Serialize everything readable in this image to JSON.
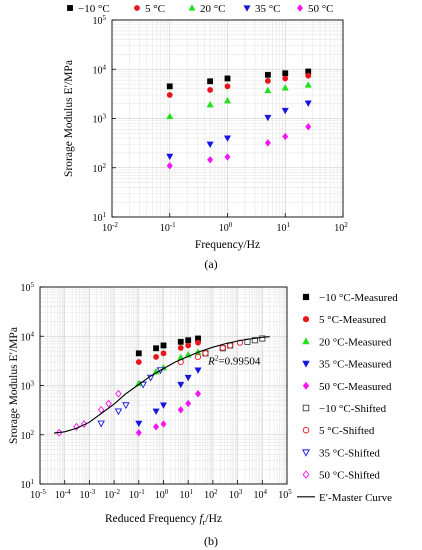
{
  "figure": {
    "panel_a_label": "(a)",
    "panel_b_label": "(b)"
  },
  "chart_data": [
    {
      "type": "scatter",
      "panel": "a",
      "xlabel": "Frequency/Hz",
      "ylabel": "Srorage Modulus E′/MPa",
      "x_scale": "log",
      "y_scale": "log",
      "xlim": [
        0.01,
        100
      ],
      "ylim": [
        10,
        100000
      ],
      "x_ticks": [
        0.01,
        0.1,
        1,
        10,
        100
      ],
      "x_tick_labels": [
        [
          "10",
          "-2"
        ],
        [
          "10",
          "-1"
        ],
        [
          "10",
          "0"
        ],
        [
          "10",
          "1"
        ],
        [
          "10",
          "2"
        ]
      ],
      "y_ticks": [
        10,
        100,
        1000,
        10000,
        100000
      ],
      "y_tick_labels": [
        [
          "10",
          "1"
        ],
        [
          "10",
          "2"
        ],
        [
          "10",
          "3"
        ],
        [
          "10",
          "4"
        ],
        [
          "10",
          "5"
        ]
      ],
      "grid": true,
      "legend_position": "top, horizontal",
      "series": [
        {
          "name": "−10 °C",
          "marker": "square",
          "color": "#000000",
          "x": [
            0.1,
            0.5,
            1,
            5,
            10,
            25
          ],
          "y": [
            4500,
            5700,
            6500,
            7700,
            8300,
            9000
          ]
        },
        {
          "name": "5 °C",
          "marker": "circle",
          "color": "#e8151b",
          "x": [
            0.1,
            0.5,
            1,
            5,
            10,
            25
          ],
          "y": [
            3000,
            3800,
            4500,
            5800,
            6500,
            7400
          ]
        },
        {
          "name": "20 °C",
          "marker": "triangle-up",
          "color": "#22e01e",
          "x": [
            0.1,
            0.5,
            1,
            5,
            10,
            25
          ],
          "y": [
            1100,
            1900,
            2300,
            3700,
            4200,
            4800
          ]
        },
        {
          "name": "35 °C",
          "marker": "triangle-down",
          "color": "#1515e0",
          "x": [
            0.1,
            0.5,
            1,
            5,
            10,
            25
          ],
          "y": [
            170,
            300,
            400,
            1050,
            1450,
            2050
          ]
        },
        {
          "name": "50 °C",
          "marker": "diamond",
          "color": "#f214f2",
          "x": [
            0.1,
            0.5,
            1,
            5,
            10,
            25
          ],
          "y": [
            110,
            145,
            165,
            320,
            430,
            680
          ]
        }
      ]
    },
    {
      "type": "scatter",
      "panel": "b",
      "xlabel_main": "Reduced Frequency ",
      "xlabel_var": "f",
      "xlabel_sub": "r",
      "xlabel_unit": "/Hz",
      "ylabel": "Srorage Modulus E′/MPa",
      "x_scale": "log",
      "y_scale": "log",
      "xlim": [
        1e-05,
        100000
      ],
      "ylim": [
        10,
        100000
      ],
      "x_ticks": [
        1e-05,
        0.0001,
        0.001,
        0.01,
        0.1,
        1,
        10,
        100,
        1000,
        10000,
        100000
      ],
      "x_tick_labels": [
        [
          "10",
          "-5"
        ],
        [
          "10",
          "-4"
        ],
        [
          "10",
          "-3"
        ],
        [
          "10",
          "-2"
        ],
        [
          "10",
          "-1"
        ],
        [
          "10",
          "0"
        ],
        [
          "10",
          "1"
        ],
        [
          "10",
          "2"
        ],
        [
          "10",
          "3"
        ],
        [
          "10",
          "4"
        ],
        [
          "10",
          "5"
        ]
      ],
      "y_ticks": [
        10,
        100,
        1000,
        10000,
        100000
      ],
      "y_tick_labels": [
        [
          "10",
          "1"
        ],
        [
          "10",
          "2"
        ],
        [
          "10",
          "3"
        ],
        [
          "10",
          "4"
        ],
        [
          "10",
          "5"
        ]
      ],
      "grid": true,
      "legend_position": "right",
      "annotation": {
        "var": "R",
        "sup": "2",
        "text": "=0.99504",
        "at_x": 500,
        "at_y": 2700
      },
      "series": [
        {
          "name": "−10 °C-Measured",
          "marker": "square",
          "filled": true,
          "color": "#000000",
          "x": [
            0.1,
            0.5,
            1,
            5,
            10,
            25
          ],
          "y": [
            4500,
            5700,
            6500,
            7700,
            8300,
            9000
          ]
        },
        {
          "name": "5 °C-Measured",
          "marker": "circle",
          "filled": true,
          "color": "#e8151b",
          "x": [
            0.1,
            0.5,
            1,
            5,
            10,
            25
          ],
          "y": [
            3000,
            3800,
            4500,
            5800,
            6500,
            7400
          ]
        },
        {
          "name": "20 °C-Measured",
          "marker": "triangle-up",
          "filled": true,
          "color": "#22e01e",
          "x": [
            0.1,
            0.5,
            1,
            5,
            10,
            25
          ],
          "y": [
            1100,
            1900,
            2300,
            3700,
            4200,
            4800
          ]
        },
        {
          "name": "35 °C-Measured",
          "marker": "triangle-down",
          "filled": true,
          "color": "#1515e0",
          "x": [
            0.1,
            0.5,
            1,
            5,
            10,
            25
          ],
          "y": [
            170,
            300,
            400,
            1050,
            1450,
            2050
          ]
        },
        {
          "name": "50 °C-Measured",
          "marker": "diamond",
          "filled": true,
          "color": "#f214f2",
          "x": [
            0.1,
            0.5,
            1,
            5,
            10,
            25
          ],
          "y": [
            110,
            145,
            165,
            320,
            430,
            680
          ]
        },
        {
          "name": "−10 °C-Shifted",
          "marker": "square",
          "filled": false,
          "color": "#404040",
          "x": [
            50,
            250,
            500,
            2500,
            5000,
            10000
          ],
          "y": [
            4500,
            5700,
            6500,
            7700,
            8300,
            9000
          ]
        },
        {
          "name": "5 °C-Shifted",
          "marker": "circle",
          "filled": false,
          "color": "#e8151b",
          "x": [
            5,
            25,
            50,
            250,
            500,
            1250
          ],
          "y": [
            3000,
            3800,
            4500,
            5800,
            6500,
            7400
          ]
        },
        {
          "name": "35 °C-Shifted",
          "marker": "triangle-down",
          "filled": false,
          "color": "#1515e0",
          "x": [
            0.003,
            0.015,
            0.03,
            0.15,
            0.3,
            0.75
          ],
          "y": [
            170,
            300,
            400,
            1050,
            1450,
            2050
          ]
        },
        {
          "name": "50 °C-Shifted",
          "marker": "diamond",
          "filled": false,
          "color": "#f214f2",
          "x": [
            6e-05,
            0.0003,
            0.0006,
            0.003,
            0.006,
            0.015
          ],
          "y": [
            110,
            145,
            165,
            320,
            430,
            680
          ]
        },
        {
          "name": "E′-Master Curve",
          "marker": "line",
          "color": "#000000",
          "x": [
            3e-05,
            0.0001,
            0.0003,
            0.001,
            0.003,
            0.01,
            0.03,
            0.1,
            0.3,
            1,
            3,
            10,
            30,
            100,
            300,
            1000,
            3000,
            10000,
            20000
          ],
          "y": [
            108,
            115,
            135,
            180,
            270,
            420,
            680,
            1050,
            1550,
            2200,
            3000,
            3900,
            4900,
            6000,
            7000,
            8000,
            8800,
            9500,
            9800
          ]
        }
      ]
    }
  ]
}
